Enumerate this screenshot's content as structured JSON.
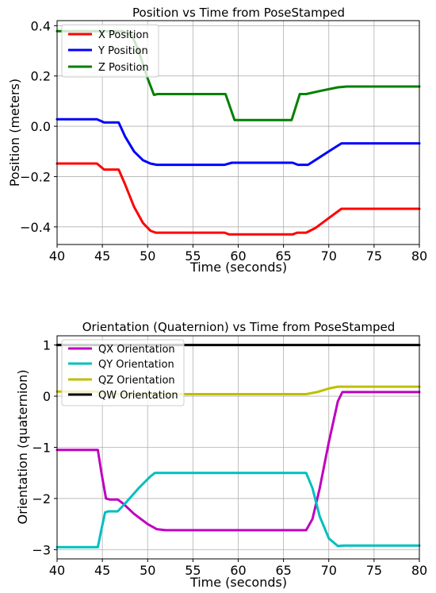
{
  "chart_data": [
    {
      "type": "line",
      "title": "Position vs Time from PoseStamped",
      "xlabel": "Time (seconds)",
      "ylabel": "Position (meters)",
      "xlim": [
        40,
        80
      ],
      "ylim": [
        -0.47,
        0.42
      ],
      "xticks": [
        40,
        45,
        50,
        55,
        60,
        65,
        70,
        75,
        80
      ],
      "yticks": [
        -0.4,
        -0.2,
        0.0,
        0.2,
        0.4
      ],
      "ytick_labels": [
        "−0.4",
        "−0.2",
        "0.0",
        "0.2",
        "0.4"
      ],
      "grid": true,
      "legend_position": "upper-left",
      "series": [
        {
          "name": "X Position",
          "color": "#ff0000",
          "points": [
            [
              40,
              -0.148
            ],
            [
              44.4,
              -0.148
            ],
            [
              45.2,
              -0.172
            ],
            [
              46.8,
              -0.172
            ],
            [
              47.5,
              -0.23
            ],
            [
              48.5,
              -0.32
            ],
            [
              49.5,
              -0.385
            ],
            [
              50.3,
              -0.415
            ],
            [
              50.9,
              -0.423
            ],
            [
              58.5,
              -0.423
            ],
            [
              59.0,
              -0.43
            ],
            [
              66.0,
              -0.43
            ],
            [
              66.5,
              -0.423
            ],
            [
              67.5,
              -0.423
            ],
            [
              68.5,
              -0.405
            ],
            [
              70.0,
              -0.365
            ],
            [
              71.4,
              -0.328
            ],
            [
              80,
              -0.328
            ]
          ]
        },
        {
          "name": "Y Position",
          "color": "#0000ff",
          "points": [
            [
              40,
              0.028
            ],
            [
              44.4,
              0.028
            ],
            [
              45.2,
              0.015
            ],
            [
              46.8,
              0.015
            ],
            [
              47.5,
              -0.04
            ],
            [
              48.5,
              -0.1
            ],
            [
              49.5,
              -0.135
            ],
            [
              50.3,
              -0.148
            ],
            [
              51.0,
              -0.153
            ],
            [
              58.5,
              -0.153
            ],
            [
              59.3,
              -0.145
            ],
            [
              66.0,
              -0.145
            ],
            [
              66.6,
              -0.153
            ],
            [
              67.7,
              -0.153
            ],
            [
              68.7,
              -0.13
            ],
            [
              70.2,
              -0.095
            ],
            [
              71.4,
              -0.068
            ],
            [
              80,
              -0.068
            ]
          ]
        },
        {
          "name": "Z Position",
          "color": "#008000",
          "points": [
            [
              40,
              0.378
            ],
            [
              47.3,
              0.378
            ],
            [
              48.3,
              0.36
            ],
            [
              49.0,
              0.3
            ],
            [
              50.0,
              0.19
            ],
            [
              50.7,
              0.125
            ],
            [
              51.1,
              0.128
            ],
            [
              58.6,
              0.128
            ],
            [
              59.6,
              0.025
            ],
            [
              65.9,
              0.025
            ],
            [
              66.8,
              0.128
            ],
            [
              67.5,
              0.128
            ],
            [
              69.0,
              0.14
            ],
            [
              71.0,
              0.155
            ],
            [
              72.0,
              0.158
            ],
            [
              80,
              0.158
            ]
          ]
        }
      ]
    },
    {
      "type": "line",
      "title": "Orientation (Quaternion) vs Time from PoseStamped",
      "xlabel": "Time (seconds)",
      "ylabel": "Orientation (quaternion)",
      "xlim": [
        40,
        80
      ],
      "ylim": [
        -3.18,
        1.18
      ],
      "xticks": [
        40,
        45,
        50,
        55,
        60,
        65,
        70,
        75,
        80
      ],
      "yticks": [
        -3,
        -2,
        -1,
        0,
        1
      ],
      "ytick_labels": [
        "−3",
        "−2",
        "−1",
        "0",
        "1"
      ],
      "grid": true,
      "legend_position": "upper-left",
      "series": [
        {
          "name": "QX Orientation",
          "color": "#bf00bf",
          "points": [
            [
              40,
              -1.05
            ],
            [
              44.5,
              -1.05
            ],
            [
              44.9,
              -1.5
            ],
            [
              45.4,
              -2.0
            ],
            [
              45.8,
              -2.02
            ],
            [
              46.7,
              -2.02
            ],
            [
              47.3,
              -2.1
            ],
            [
              48.5,
              -2.3
            ],
            [
              50.0,
              -2.5
            ],
            [
              51.0,
              -2.6
            ],
            [
              52.0,
              -2.62
            ],
            [
              67.5,
              -2.62
            ],
            [
              68.2,
              -2.4
            ],
            [
              69.0,
              -1.8
            ],
            [
              70.0,
              -0.9
            ],
            [
              71.0,
              -0.1
            ],
            [
              71.5,
              0.08
            ],
            [
              80,
              0.08
            ]
          ]
        },
        {
          "name": "QY Orientation",
          "color": "#00bfbf",
          "points": [
            [
              40,
              -2.95
            ],
            [
              44.5,
              -2.95
            ],
            [
              44.9,
              -2.6
            ],
            [
              45.3,
              -2.27
            ],
            [
              45.7,
              -2.25
            ],
            [
              46.7,
              -2.25
            ],
            [
              47.5,
              -2.1
            ],
            [
              49.0,
              -1.8
            ],
            [
              50.3,
              -1.57
            ],
            [
              50.8,
              -1.5
            ],
            [
              67.5,
              -1.5
            ],
            [
              68.2,
              -1.8
            ],
            [
              69.0,
              -2.35
            ],
            [
              70.0,
              -2.78
            ],
            [
              71.0,
              -2.93
            ],
            [
              71.6,
              -2.92
            ],
            [
              80,
              -2.92
            ]
          ]
        },
        {
          "name": "QZ Orientation",
          "color": "#bfbf00",
          "points": [
            [
              40,
              0.09
            ],
            [
              44.3,
              0.09
            ],
            [
              45.2,
              0.05
            ],
            [
              48.0,
              0.04
            ],
            [
              51.0,
              0.04
            ],
            [
              67.5,
              0.04
            ],
            [
              68.7,
              0.08
            ],
            [
              70.0,
              0.15
            ],
            [
              71.0,
              0.185
            ],
            [
              80,
              0.185
            ]
          ]
        },
        {
          "name": "QW Orientation",
          "color": "#000000",
          "points": [
            [
              40,
              1.0
            ],
            [
              80,
              1.0
            ]
          ]
        }
      ]
    }
  ]
}
